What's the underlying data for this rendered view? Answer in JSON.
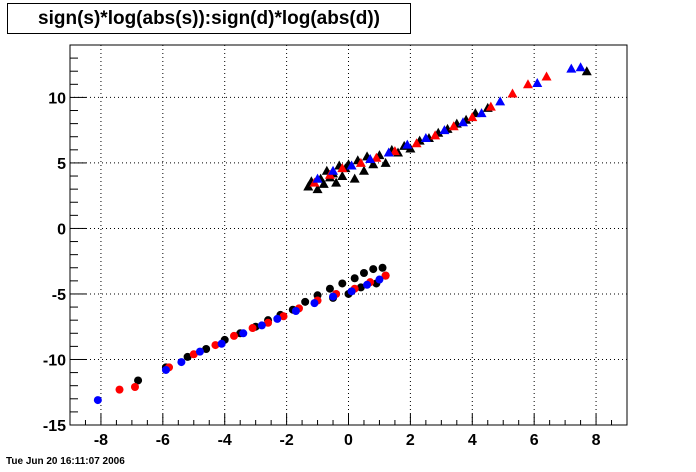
{
  "title": "sign(s)*log(abs(s)):sign(d)*log(abs(d))",
  "footer": {
    "timestamp": "Tue Jun 20 16:11:07 2006"
  },
  "colors": {
    "black": "#000000",
    "red": "#ff0000",
    "blue": "#0000ff",
    "grid": "#000000",
    "background": "#ffffff"
  },
  "chart_data": {
    "type": "scatter",
    "title": "sign(s)*log(abs(s)):sign(d)*log(abs(d))",
    "xlabel": "",
    "ylabel": "",
    "xlim": [
      -9.0,
      9.0
    ],
    "ylim": [
      -15,
      14
    ],
    "x_ticks": [
      -8,
      -6,
      -4,
      -2,
      0,
      2,
      4,
      6,
      8
    ],
    "x_tick_labels": [
      "-8",
      "-6",
      "-4",
      "-2",
      "0",
      "2",
      "4",
      "6",
      "8"
    ],
    "y_ticks": [
      -15,
      -10,
      -5,
      0,
      5,
      10
    ],
    "y_tick_labels": [
      "-15",
      "-10",
      "-5",
      "0",
      "5",
      "10"
    ],
    "grid": true,
    "legend": "none",
    "series": [
      {
        "marker": "triangle",
        "color": "#000000",
        "points": [
          [
            -1.3,
            3.2
          ],
          [
            -1.2,
            3.6
          ],
          [
            -1.0,
            3.0
          ],
          [
            -0.9,
            3.8
          ],
          [
            -0.8,
            3.4
          ],
          [
            -0.7,
            4.4
          ],
          [
            -0.6,
            3.9
          ],
          [
            -0.5,
            4.2
          ],
          [
            -0.4,
            3.5
          ],
          [
            -0.3,
            4.8
          ],
          [
            -0.2,
            4.0
          ],
          [
            -0.1,
            4.6
          ],
          [
            0.0,
            4.9
          ],
          [
            0.2,
            3.8
          ],
          [
            0.3,
            5.2
          ],
          [
            0.5,
            4.4
          ],
          [
            0.6,
            5.5
          ],
          [
            0.8,
            4.9
          ],
          [
            1.0,
            5.6
          ],
          [
            1.2,
            5.0
          ],
          [
            1.4,
            6.0
          ],
          [
            1.6,
            5.8
          ],
          [
            1.8,
            6.3
          ],
          [
            2.0,
            6.1
          ],
          [
            2.3,
            6.7
          ],
          [
            2.6,
            6.9
          ],
          [
            2.9,
            7.3
          ],
          [
            3.2,
            7.6
          ],
          [
            3.5,
            8.0
          ],
          [
            3.8,
            8.3
          ],
          [
            4.1,
            8.8
          ],
          [
            4.5,
            9.2
          ],
          [
            7.7,
            12.0
          ]
        ]
      },
      {
        "marker": "triangle",
        "color": "#ff0000",
        "points": [
          [
            -1.1,
            3.5
          ],
          [
            -0.6,
            4.1
          ],
          [
            -0.2,
            4.6
          ],
          [
            0.4,
            5.0
          ],
          [
            0.9,
            5.4
          ],
          [
            1.5,
            5.9
          ],
          [
            2.2,
            6.5
          ],
          [
            2.8,
            7.1
          ],
          [
            3.4,
            7.8
          ],
          [
            4.0,
            8.5
          ],
          [
            4.6,
            9.3
          ],
          [
            5.3,
            10.3
          ],
          [
            5.8,
            11.0
          ],
          [
            6.4,
            11.6
          ]
        ]
      },
      {
        "marker": "triangle",
        "color": "#0000ff",
        "points": [
          [
            -1.0,
            3.8
          ],
          [
            -0.5,
            4.4
          ],
          [
            0.1,
            4.8
          ],
          [
            0.7,
            5.3
          ],
          [
            1.3,
            5.8
          ],
          [
            1.9,
            6.4
          ],
          [
            2.5,
            6.9
          ],
          [
            3.1,
            7.5
          ],
          [
            3.7,
            8.1
          ],
          [
            4.3,
            8.8
          ],
          [
            4.9,
            9.7
          ],
          [
            6.1,
            11.1
          ],
          [
            7.2,
            12.2
          ],
          [
            7.5,
            12.3
          ]
        ]
      },
      {
        "marker": "circle",
        "color": "#000000",
        "points": [
          [
            -6.8,
            -11.6
          ],
          [
            -5.9,
            -10.6
          ],
          [
            -5.2,
            -9.8
          ],
          [
            -4.6,
            -9.2
          ],
          [
            -4.0,
            -8.5
          ],
          [
            -3.5,
            -8.0
          ],
          [
            -3.0,
            -7.5
          ],
          [
            -2.6,
            -7.0
          ],
          [
            -2.2,
            -6.6
          ],
          [
            -1.8,
            -6.2
          ],
          [
            -1.4,
            -5.6
          ],
          [
            -1.0,
            -5.1
          ],
          [
            -0.6,
            -4.6
          ],
          [
            -0.2,
            -4.2
          ],
          [
            0.2,
            -3.8
          ],
          [
            0.5,
            -3.4
          ],
          [
            0.8,
            -3.1
          ],
          [
            1.1,
            -3.0
          ],
          [
            1.2,
            -3.6
          ],
          [
            0.9,
            -4.2
          ],
          [
            0.4,
            -4.5
          ],
          [
            0.0,
            -5.0
          ],
          [
            -0.5,
            -5.3
          ]
        ]
      },
      {
        "marker": "circle",
        "color": "#ff0000",
        "points": [
          [
            -7.4,
            -12.3
          ],
          [
            -6.9,
            -12.1
          ],
          [
            -5.8,
            -10.6
          ],
          [
            -5.0,
            -9.6
          ],
          [
            -4.3,
            -8.9
          ],
          [
            -3.7,
            -8.2
          ],
          [
            -3.1,
            -7.6
          ],
          [
            -2.6,
            -7.2
          ],
          [
            -2.1,
            -6.7
          ],
          [
            -1.6,
            -6.1
          ],
          [
            -1.0,
            -5.5
          ],
          [
            -0.4,
            -5.0
          ],
          [
            0.2,
            -4.6
          ],
          [
            0.7,
            -4.1
          ],
          [
            1.2,
            -3.6
          ]
        ]
      },
      {
        "marker": "circle",
        "color": "#0000ff",
        "points": [
          [
            -8.1,
            -13.1
          ],
          [
            -5.9,
            -10.8
          ],
          [
            -5.4,
            -10.2
          ],
          [
            -4.8,
            -9.4
          ],
          [
            -4.1,
            -8.8
          ],
          [
            -3.4,
            -8.0
          ],
          [
            -2.8,
            -7.4
          ],
          [
            -2.3,
            -6.9
          ],
          [
            -1.7,
            -6.3
          ],
          [
            -1.1,
            -5.7
          ],
          [
            -0.5,
            -5.2
          ],
          [
            0.1,
            -4.8
          ],
          [
            0.6,
            -4.3
          ],
          [
            1.0,
            -3.9
          ]
        ]
      }
    ]
  }
}
